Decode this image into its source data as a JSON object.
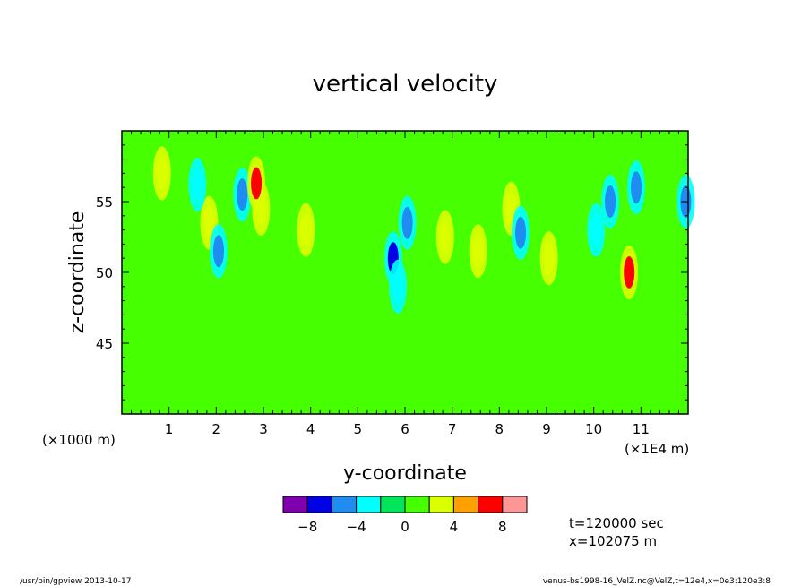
{
  "chart_data": {
    "type": "heatmap",
    "title": "vertical velocity",
    "xlabel": "y-coordinate",
    "ylabel": "z-coordinate",
    "x_unit_left": "(×1000 m)",
    "x_unit_right": "(×1E4 m)",
    "xlim": [
      0,
      12
    ],
    "ylim": [
      40,
      60
    ],
    "x_ticks": [
      "1",
      "2",
      "3",
      "4",
      "5",
      "6",
      "7",
      "8",
      "9",
      "10",
      "11"
    ],
    "y_ticks": [
      "45",
      "50",
      "55"
    ],
    "colorbar": {
      "levels": [
        -10,
        -8,
        -6,
        -4,
        -2,
        0,
        2,
        4,
        6,
        8,
        10
      ],
      "labels": [
        "−8",
        "−4",
        "0",
        "4",
        "8"
      ],
      "label_values": [
        -8,
        -4,
        0,
        4,
        8
      ],
      "colors": [
        "#8000b0",
        "#0000e6",
        "#1e8cf0",
        "#00ffff",
        "#00e65a",
        "#46ff00",
        "#dcff00",
        "#ffa000",
        "#ff0000",
        "#ff9696"
      ]
    },
    "background_color": "#46ff00",
    "features": [
      {
        "y": 0.85,
        "z": 57.0,
        "value": 3.5
      },
      {
        "y": 1.85,
        "z": 53.5,
        "value": 2.5
      },
      {
        "y": 1.6,
        "z": 56.2,
        "value": -2.5
      },
      {
        "y": 2.05,
        "z": 51.5,
        "value": -5.5
      },
      {
        "y": 2.55,
        "z": 55.5,
        "value": -6.0
      },
      {
        "y": 2.95,
        "z": 54.5,
        "value": 3.0
      },
      {
        "y": 2.85,
        "z": 56.3,
        "value": 6.0
      },
      {
        "y": 3.9,
        "z": 53.0,
        "value": 3.5
      },
      {
        "y": 5.75,
        "z": 51.0,
        "value": -8.0
      },
      {
        "y": 5.85,
        "z": 49.0,
        "value": -3.0
      },
      {
        "y": 6.05,
        "z": 53.5,
        "value": -4.5
      },
      {
        "y": 6.85,
        "z": 52.5,
        "value": 3.5
      },
      {
        "y": 7.55,
        "z": 51.5,
        "value": 2.5
      },
      {
        "y": 8.25,
        "z": 54.5,
        "value": 3.5
      },
      {
        "y": 8.45,
        "z": 52.8,
        "value": -5.5
      },
      {
        "y": 9.05,
        "z": 51.0,
        "value": 3.0
      },
      {
        "y": 10.05,
        "z": 53.0,
        "value": -3.0
      },
      {
        "y": 10.35,
        "z": 55.0,
        "value": -5.0
      },
      {
        "y": 10.75,
        "z": 50.0,
        "value": 6.0
      },
      {
        "y": 10.9,
        "z": 56.0,
        "value": -5.0
      },
      {
        "y": 11.95,
        "z": 55.0,
        "value": -6.0
      }
    ]
  },
  "info": {
    "time": "t=120000 sec",
    "x": "x=102075 m"
  },
  "footer": {
    "left": "/usr/bin/gpview   2013-10-17",
    "right": "venus-bs1998-16_VelZ.nc@VelZ,t=12e4,x=0e3:120e3:8"
  }
}
